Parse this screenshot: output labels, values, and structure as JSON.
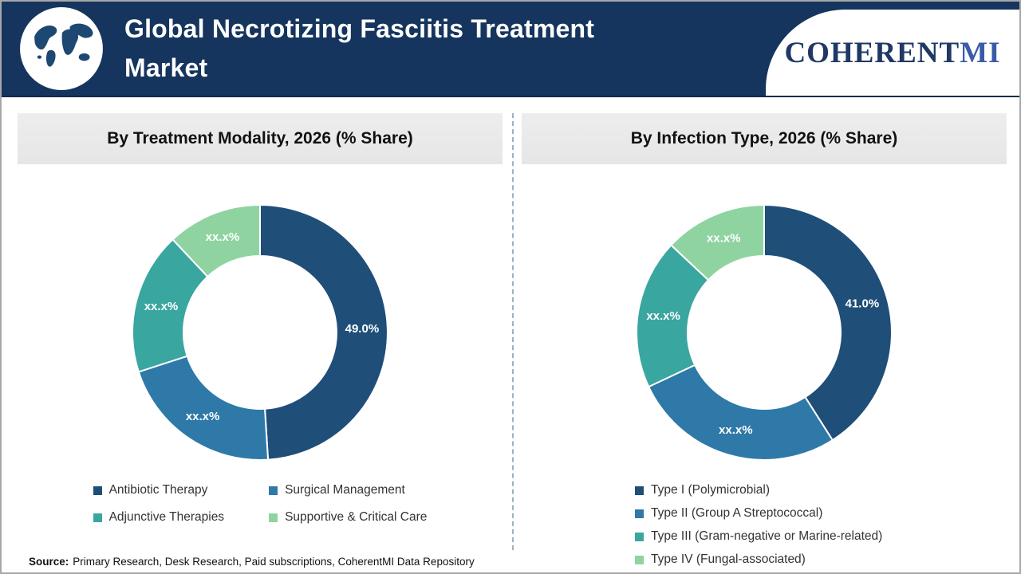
{
  "header": {
    "title_lines": [
      "Global Necrotizing Fasciitis Treatment",
      "Market"
    ],
    "logo": {
      "part1": "COHERENT",
      "part2": "MI"
    },
    "banner_color": "#15355E"
  },
  "panels": [
    {
      "title": "By Treatment Modality, 2026 (% Share)"
    },
    {
      "title": "By Infection Type, 2026 (% Share)"
    }
  ],
  "chart_data": [
    {
      "type": "pie",
      "subtype": "donut",
      "title": "By Treatment Modality, 2026 (% Share)",
      "categories": [
        "Antibiotic Therapy",
        "Surgical Management",
        "Adjunctive Therapies",
        "Supportive & Critical Care"
      ],
      "labels": [
        "49.0%",
        "xx.x%",
        "xx.x%",
        "xx.x%"
      ],
      "values_pct_est": [
        49,
        21,
        18,
        12
      ],
      "colors": [
        "#1F4E79",
        "#2E79A8",
        "#3AA6A0",
        "#8FD4A0"
      ],
      "start_angle_deg": 0,
      "direction": "clockwise",
      "legend_position": "bottom",
      "legend_columns": 2
    },
    {
      "type": "pie",
      "subtype": "donut",
      "title": "By Infection Type, 2026 (% Share)",
      "categories": [
        "Type I (Polymicrobial)",
        "Type II (Group A Streptococcal)",
        "Type III (Gram-negative or Marine-related)",
        "Type IV (Fungal-associated)"
      ],
      "labels": [
        "41.0%",
        "xx.x%",
        "xx.x%",
        "xx.x%"
      ],
      "values_pct_est": [
        41,
        27,
        19,
        13
      ],
      "colors": [
        "#1F4E79",
        "#2E79A8",
        "#3AA6A0",
        "#8FD4A0"
      ],
      "start_angle_deg": 0,
      "direction": "clockwise",
      "legend_position": "bottom",
      "legend_columns": 1
    }
  ],
  "footer": {
    "source_label": "Source:",
    "source_text": "Primary Research, Desk Research, Paid subscriptions, CoherentMI Data Repository"
  }
}
